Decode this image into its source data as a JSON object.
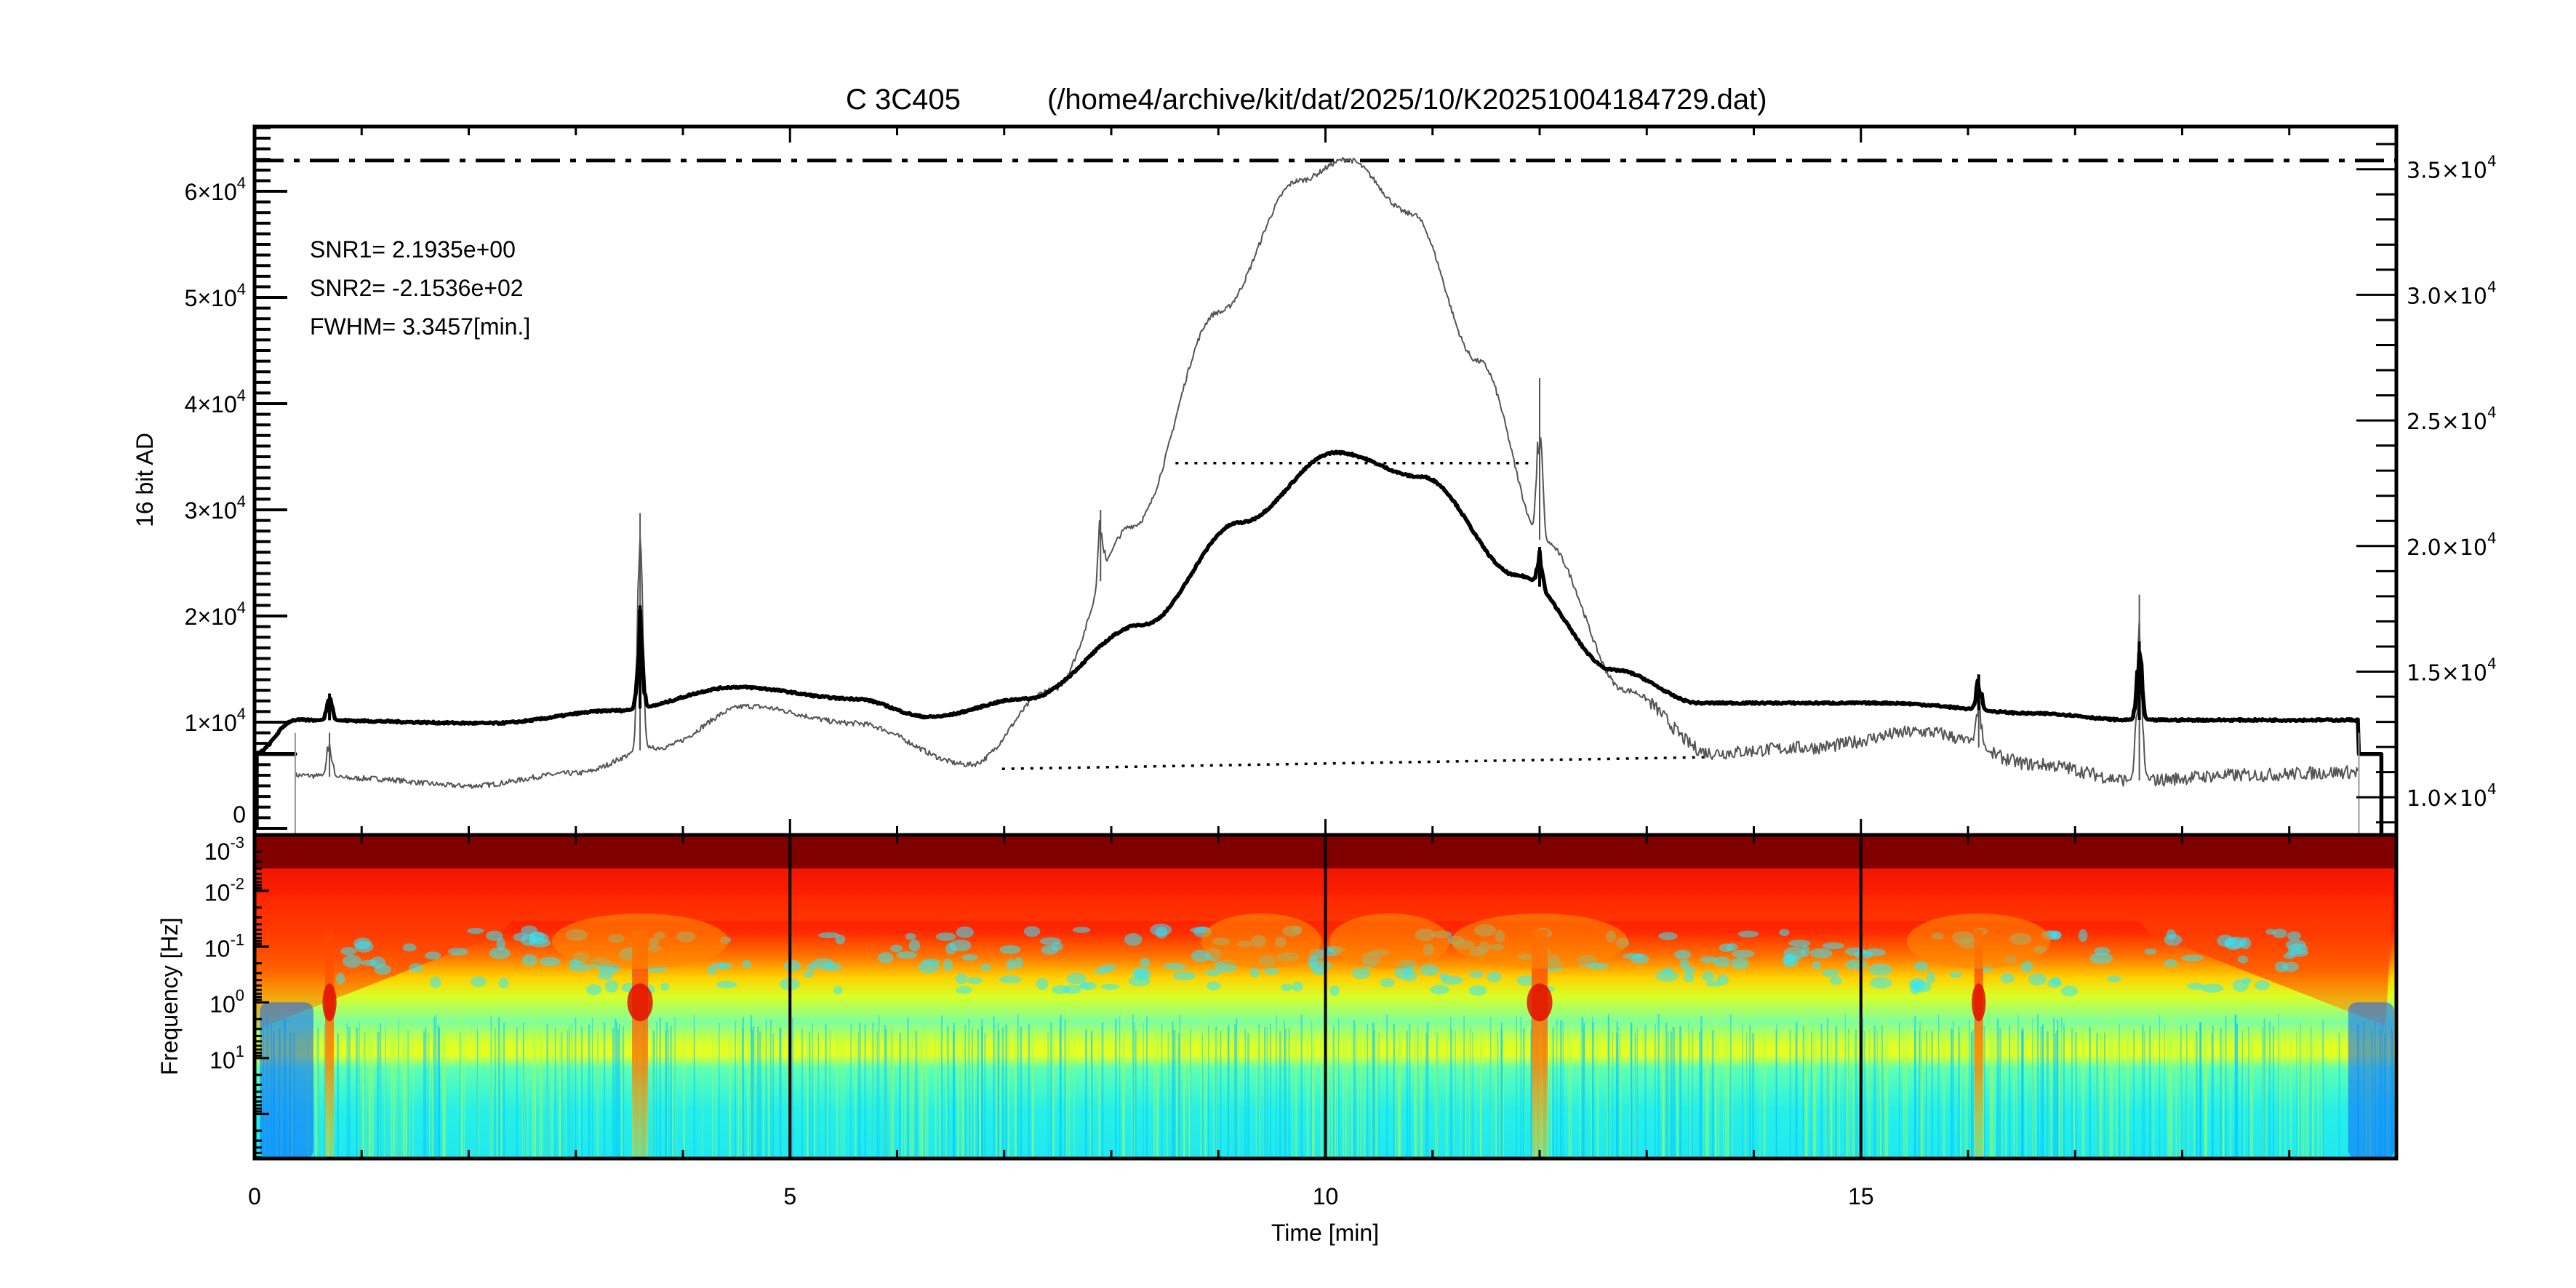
{
  "chart_data": [
    {
      "type": "line",
      "title": {
        "source": "C 3C405",
        "file": "(/home4/archive/kit/dat/2025/10/K20251004184729.dat)"
      },
      "xlabel": "",
      "ylabel": "16 bit AD",
      "xlim": [
        0,
        20
      ],
      "ylim_left": [
        -620,
        66100
      ],
      "ylim_right": [
        8500,
        36700
      ],
      "grid": false,
      "left_ticks": [
        {
          "base": "0",
          "exp": "",
          "value": 0
        },
        {
          "base": "1×10",
          "exp": "4",
          "value": 10000
        },
        {
          "base": "2×10",
          "exp": "4",
          "value": 20000
        },
        {
          "base": "3×10",
          "exp": "4",
          "value": 30000
        },
        {
          "base": "4×10",
          "exp": "4",
          "value": 40000
        },
        {
          "base": "5×10",
          "exp": "4",
          "value": 50000
        },
        {
          "base": "6×10",
          "exp": "4",
          "value": 60000
        }
      ],
      "right_ticks": [
        {
          "base": "1.0×10",
          "exp": "4",
          "value": 10000
        },
        {
          "base": "1.5×10",
          "exp": "4",
          "value": 15000
        },
        {
          "base": "2.0×10",
          "exp": "4",
          "value": 20000
        },
        {
          "base": "2.5×10",
          "exp": "4",
          "value": 25000
        },
        {
          "base": "3.0×10",
          "exp": "4",
          "value": 30000
        },
        {
          "base": "3.5×10",
          "exp": "4",
          "value": 35000
        }
      ],
      "annotations": [
        "SNR1=  2.1935e+00",
        "SNR2= -2.1536e+02",
        "FWHM= 3.3457[min.]"
      ],
      "reference_lines": [
        {
          "style": "dash-dot",
          "x": [
            0,
            20
          ],
          "y": [
            62900,
            62900
          ]
        },
        {
          "style": "dotted",
          "x": [
            8.6,
            11.9
          ],
          "y": [
            34400,
            34400
          ]
        },
        {
          "style": "dotted",
          "x": [
            6.98,
            13.58
          ],
          "y": [
            5600,
            6700
          ]
        }
      ],
      "series": [
        {
          "color": "#555555",
          "x": [
            0.38,
            1.0,
            2.0,
            3.0,
            3.76,
            4.6,
            5.6,
            6.68,
            7.44,
            8.2,
            9.0,
            9.75,
            10.2,
            10.8,
            11.43,
            12.05,
            12.8,
            13.6,
            14.5,
            15.58,
            16.65,
            17.57,
            18.5,
            19.65
          ],
          "y": [
            5000,
            4700,
            4000,
            5200,
            7600,
            11500,
            9900,
            6000,
            13000,
            28500,
            48600,
            61000,
            63000,
            57900,
            44000,
            26900,
            13000,
            7100,
            7600,
            9100,
            6000,
            4500,
            5000,
            5300
          ],
          "spikes": [
            {
              "x": 3.6,
              "y": 29700
            },
            {
              "x": 7.9,
              "y": 30000
            },
            {
              "x": 12.0,
              "y": 42400
            },
            {
              "x": 17.6,
              "y": 22000
            },
            {
              "x": 0.7,
              "y": 9000
            },
            {
              "x": 16.1,
              "y": 12500
            }
          ]
        },
        {
          "color": "#000000",
          "x": [
            0.0,
            0.38,
            2.2,
            3.4,
            4.5,
            5.6,
            6.3,
            7.2,
            8.3,
            9.2,
            10.1,
            10.9,
            11.8,
            12.7,
            13.5,
            15.2,
            16.7,
            17.5,
            19.65
          ],
          "y": [
            7000,
            10200,
            9900,
            11100,
            13300,
            12200,
            10500,
            12200,
            19200,
            28800,
            35400,
            33100,
            23800,
            14900,
            11800,
            11800,
            10800,
            10200,
            10200
          ],
          "spikes": [
            {
              "x": 0.7,
              "y": 12700
            },
            {
              "x": 3.6,
              "y": 21000
            },
            {
              "x": 12.0,
              "y": 26500
            },
            {
              "x": 17.6,
              "y": 17600
            },
            {
              "x": 16.1,
              "y": 14500
            }
          ]
        }
      ]
    },
    {
      "type": "heatmap",
      "xlabel": "Time [min]",
      "ylabel": "Frequency [Hz]",
      "xlim": [
        0,
        20
      ],
      "ylim": [
        0.001,
        630
      ],
      "yscale": "log",
      "yaxis_inverted": true,
      "colormap": "jet",
      "x_ticks": [
        "0",
        "5",
        "10",
        "15"
      ],
      "x_tick_values": [
        0,
        5,
        10,
        15
      ],
      "y_ticks": [
        {
          "base": "10",
          "exp": "-3",
          "value": 0.001
        },
        {
          "base": "10",
          "exp": "-2",
          "value": 0.01
        },
        {
          "base": "10",
          "exp": "-1",
          "value": 0.1
        },
        {
          "base": "10",
          "exp": "0",
          "value": 1
        },
        {
          "base": "10",
          "exp": "1",
          "value": 10
        }
      ],
      "vertical_markers": [
        5,
        10,
        15
      ],
      "bright_events_min": [
        0.7,
        3.6,
        12.0,
        16.1
      ]
    }
  ]
}
